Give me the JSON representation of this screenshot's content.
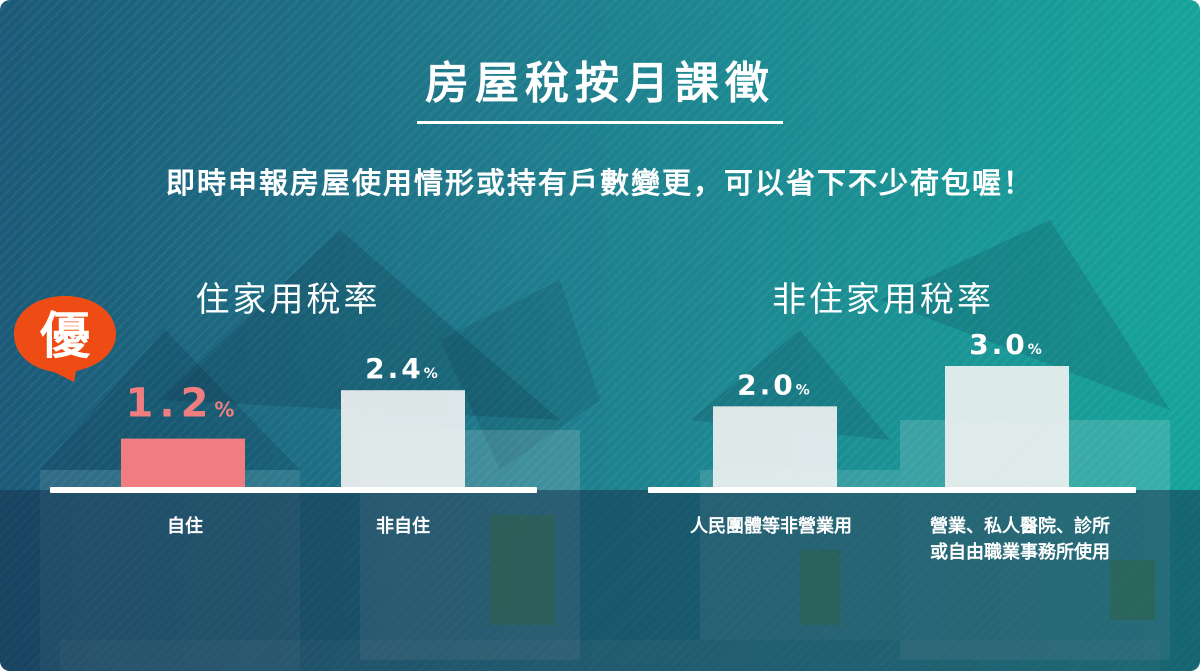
{
  "title": "房屋稅按月課徵",
  "subtitle": "即時申報房屋使用情形或持有戶數變更，可以省下不少荷包喔！",
  "badge": "優",
  "colors": {
    "highlight_bar": "#f07d80",
    "normal_bar": "#eef1f1",
    "highlight_label": "#f07d80",
    "badge": "#ee4c14"
  },
  "chart_data": [
    {
      "type": "bar",
      "title": "住家用稅率",
      "categories": [
        "自住",
        "非自住"
      ],
      "values": [
        1.2,
        2.4
      ],
      "value_labels": [
        "1.2",
        "2.4"
      ],
      "unit": "%",
      "ylim": [
        0,
        3.0
      ],
      "highlight_index": 0
    },
    {
      "type": "bar",
      "title": "非住家用稅率",
      "categories": [
        "人民團體等非營業用",
        "營業、私人醫院、診所\n或自由職業事務所使用"
      ],
      "values": [
        2.0,
        3.0
      ],
      "value_labels": [
        "2.0",
        "3.0"
      ],
      "unit": "%",
      "ylim": [
        0,
        3.0
      ]
    }
  ]
}
